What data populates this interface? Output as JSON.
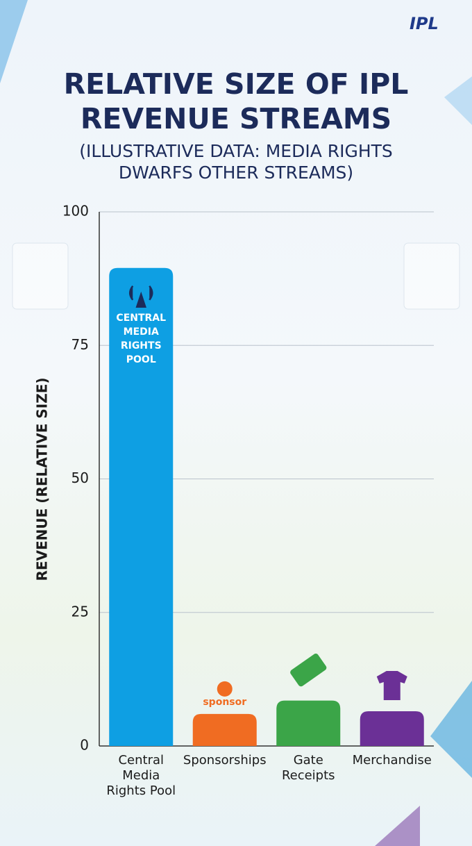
{
  "logo": "IPL",
  "chart_data": {
    "type": "bar",
    "title": "RELATIVE SIZE OF IPL REVENUE STREAMS",
    "subtitle": "(ILLUSTRATIVE DATA: MEDIA RIGHTS DWARFS OTHER STREAMS)",
    "y_label": "REVENUE (RELATIVE SIZE)",
    "categories": [
      "Central Media Rights Pool",
      "Sponsorships",
      "Gate Receipts",
      "Merchandise"
    ],
    "values": [
      89.5,
      6,
      8.5,
      6.5
    ],
    "colors": [
      "#0e9fe3",
      "#f06c22",
      "#3ba548",
      "#6b3096"
    ],
    "annotations": [
      "CENTRAL MEDIA RIGHTS POOL",
      "sponsor"
    ],
    "ylim": [
      0,
      100
    ],
    "yticks": [
      0,
      25,
      50,
      75,
      100
    ],
    "grid": true
  }
}
